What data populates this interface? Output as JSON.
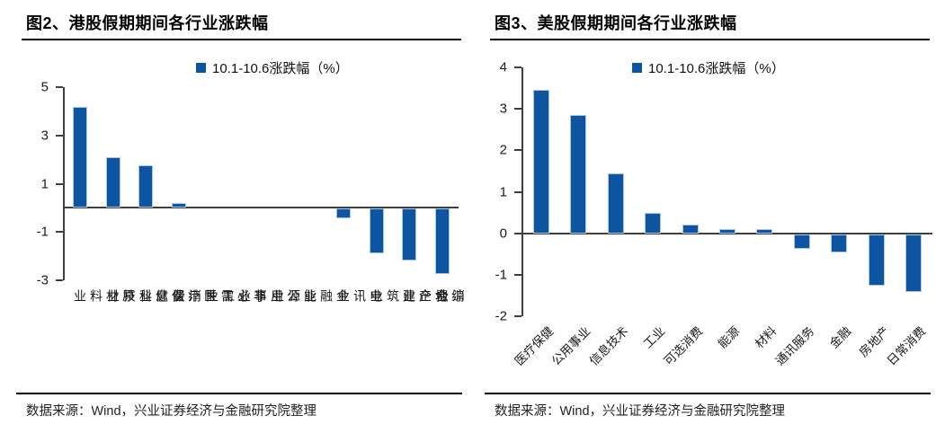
{
  "colors": {
    "bar": "#0d55a1",
    "bar_border": "#a9c7e8",
    "axis": "#3f3f3f",
    "rule": "#000000"
  },
  "panels": [
    {
      "title": "图2、港股假期期间各行业涨跌幅",
      "source": "数据来源：Wind，兴业证券经济与金融研究院整理"
    },
    {
      "title": "图3、美股假期期间各行业涨跌幅",
      "source": "数据来源：Wind，兴业证券经济与金融研究院整理"
    }
  ],
  "chart_data": [
    {
      "type": "bar",
      "title": "港股假期期间各行业涨跌幅",
      "legend_label": "10.1-10.6涨跌幅（%）",
      "legend_position": "top",
      "grid": false,
      "categories": [
        "原材料业",
        "信息科技业",
        "医疗保健业",
        "非必需性消费",
        "工业",
        "公用事业",
        "能源业",
        "金融业",
        "电讯业",
        "地产建筑业",
        "综合企业",
        "必需性消费"
      ],
      "values": [
        4.2,
        2.1,
        1.75,
        0.2,
        0,
        0,
        0,
        0,
        -0.4,
        -1.85,
        -2.15,
        -2.7
      ],
      "ylim": [
        -3,
        5
      ],
      "yticks": [
        5,
        3,
        1,
        -1,
        -3
      ],
      "xlabel": "",
      "ylabel": ""
    },
    {
      "type": "bar",
      "title": "美股假期期间各行业涨跌幅",
      "legend_label": "10.1-10.6涨跌幅（%）",
      "legend_position": "top",
      "grid": false,
      "categories": [
        "医疗保健",
        "公用事业",
        "信息技术",
        "工业",
        "可选消费",
        "能源",
        "材料",
        "通讯服务",
        "金融",
        "房地产",
        "日常消费"
      ],
      "values": [
        3.45,
        2.85,
        1.45,
        0.5,
        0.2,
        0.1,
        0.1,
        -0.35,
        -0.45,
        -1.25,
        -1.4
      ],
      "ylim": [
        -2,
        4
      ],
      "yticks": [
        4,
        3,
        2,
        1,
        0,
        -1,
        -2
      ],
      "xlabel": "",
      "ylabel": ""
    }
  ]
}
